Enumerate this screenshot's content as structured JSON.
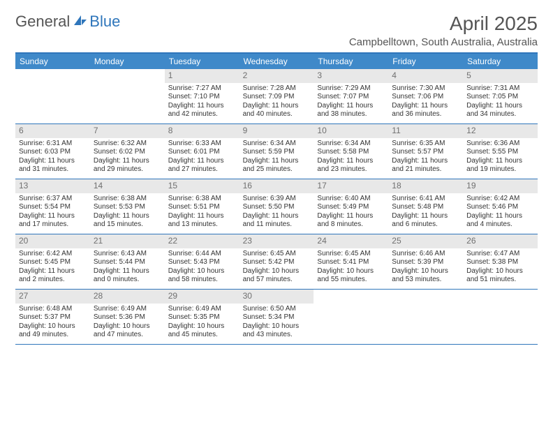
{
  "brand": {
    "part1": "General",
    "part2": "Blue"
  },
  "title": "April 2025",
  "location": "Campbelltown, South Australia, Australia",
  "colors": {
    "accent": "#3f89c9",
    "rule": "#2f76bb",
    "daybar": "#e8e8e8",
    "text": "#333333",
    "muted": "#707070",
    "header_text": "#555555"
  },
  "dayNames": [
    "Sunday",
    "Monday",
    "Tuesday",
    "Wednesday",
    "Thursday",
    "Friday",
    "Saturday"
  ],
  "weeks": [
    [
      {
        "n": "",
        "sr": "",
        "ss": "",
        "dl": ""
      },
      {
        "n": "",
        "sr": "",
        "ss": "",
        "dl": ""
      },
      {
        "n": "1",
        "sr": "Sunrise: 7:27 AM",
        "ss": "Sunset: 7:10 PM",
        "dl": "Daylight: 11 hours and 42 minutes."
      },
      {
        "n": "2",
        "sr": "Sunrise: 7:28 AM",
        "ss": "Sunset: 7:09 PM",
        "dl": "Daylight: 11 hours and 40 minutes."
      },
      {
        "n": "3",
        "sr": "Sunrise: 7:29 AM",
        "ss": "Sunset: 7:07 PM",
        "dl": "Daylight: 11 hours and 38 minutes."
      },
      {
        "n": "4",
        "sr": "Sunrise: 7:30 AM",
        "ss": "Sunset: 7:06 PM",
        "dl": "Daylight: 11 hours and 36 minutes."
      },
      {
        "n": "5",
        "sr": "Sunrise: 7:31 AM",
        "ss": "Sunset: 7:05 PM",
        "dl": "Daylight: 11 hours and 34 minutes."
      }
    ],
    [
      {
        "n": "6",
        "sr": "Sunrise: 6:31 AM",
        "ss": "Sunset: 6:03 PM",
        "dl": "Daylight: 11 hours and 31 minutes."
      },
      {
        "n": "7",
        "sr": "Sunrise: 6:32 AM",
        "ss": "Sunset: 6:02 PM",
        "dl": "Daylight: 11 hours and 29 minutes."
      },
      {
        "n": "8",
        "sr": "Sunrise: 6:33 AM",
        "ss": "Sunset: 6:01 PM",
        "dl": "Daylight: 11 hours and 27 minutes."
      },
      {
        "n": "9",
        "sr": "Sunrise: 6:34 AM",
        "ss": "Sunset: 5:59 PM",
        "dl": "Daylight: 11 hours and 25 minutes."
      },
      {
        "n": "10",
        "sr": "Sunrise: 6:34 AM",
        "ss": "Sunset: 5:58 PM",
        "dl": "Daylight: 11 hours and 23 minutes."
      },
      {
        "n": "11",
        "sr": "Sunrise: 6:35 AM",
        "ss": "Sunset: 5:57 PM",
        "dl": "Daylight: 11 hours and 21 minutes."
      },
      {
        "n": "12",
        "sr": "Sunrise: 6:36 AM",
        "ss": "Sunset: 5:55 PM",
        "dl": "Daylight: 11 hours and 19 minutes."
      }
    ],
    [
      {
        "n": "13",
        "sr": "Sunrise: 6:37 AM",
        "ss": "Sunset: 5:54 PM",
        "dl": "Daylight: 11 hours and 17 minutes."
      },
      {
        "n": "14",
        "sr": "Sunrise: 6:38 AM",
        "ss": "Sunset: 5:53 PM",
        "dl": "Daylight: 11 hours and 15 minutes."
      },
      {
        "n": "15",
        "sr": "Sunrise: 6:38 AM",
        "ss": "Sunset: 5:51 PM",
        "dl": "Daylight: 11 hours and 13 minutes."
      },
      {
        "n": "16",
        "sr": "Sunrise: 6:39 AM",
        "ss": "Sunset: 5:50 PM",
        "dl": "Daylight: 11 hours and 11 minutes."
      },
      {
        "n": "17",
        "sr": "Sunrise: 6:40 AM",
        "ss": "Sunset: 5:49 PM",
        "dl": "Daylight: 11 hours and 8 minutes."
      },
      {
        "n": "18",
        "sr": "Sunrise: 6:41 AM",
        "ss": "Sunset: 5:48 PM",
        "dl": "Daylight: 11 hours and 6 minutes."
      },
      {
        "n": "19",
        "sr": "Sunrise: 6:42 AM",
        "ss": "Sunset: 5:46 PM",
        "dl": "Daylight: 11 hours and 4 minutes."
      }
    ],
    [
      {
        "n": "20",
        "sr": "Sunrise: 6:42 AM",
        "ss": "Sunset: 5:45 PM",
        "dl": "Daylight: 11 hours and 2 minutes."
      },
      {
        "n": "21",
        "sr": "Sunrise: 6:43 AM",
        "ss": "Sunset: 5:44 PM",
        "dl": "Daylight: 11 hours and 0 minutes."
      },
      {
        "n": "22",
        "sr": "Sunrise: 6:44 AM",
        "ss": "Sunset: 5:43 PM",
        "dl": "Daylight: 10 hours and 58 minutes."
      },
      {
        "n": "23",
        "sr": "Sunrise: 6:45 AM",
        "ss": "Sunset: 5:42 PM",
        "dl": "Daylight: 10 hours and 57 minutes."
      },
      {
        "n": "24",
        "sr": "Sunrise: 6:45 AM",
        "ss": "Sunset: 5:41 PM",
        "dl": "Daylight: 10 hours and 55 minutes."
      },
      {
        "n": "25",
        "sr": "Sunrise: 6:46 AM",
        "ss": "Sunset: 5:39 PM",
        "dl": "Daylight: 10 hours and 53 minutes."
      },
      {
        "n": "26",
        "sr": "Sunrise: 6:47 AM",
        "ss": "Sunset: 5:38 PM",
        "dl": "Daylight: 10 hours and 51 minutes."
      }
    ],
    [
      {
        "n": "27",
        "sr": "Sunrise: 6:48 AM",
        "ss": "Sunset: 5:37 PM",
        "dl": "Daylight: 10 hours and 49 minutes."
      },
      {
        "n": "28",
        "sr": "Sunrise: 6:49 AM",
        "ss": "Sunset: 5:36 PM",
        "dl": "Daylight: 10 hours and 47 minutes."
      },
      {
        "n": "29",
        "sr": "Sunrise: 6:49 AM",
        "ss": "Sunset: 5:35 PM",
        "dl": "Daylight: 10 hours and 45 minutes."
      },
      {
        "n": "30",
        "sr": "Sunrise: 6:50 AM",
        "ss": "Sunset: 5:34 PM",
        "dl": "Daylight: 10 hours and 43 minutes."
      },
      {
        "n": "",
        "sr": "",
        "ss": "",
        "dl": ""
      },
      {
        "n": "",
        "sr": "",
        "ss": "",
        "dl": ""
      },
      {
        "n": "",
        "sr": "",
        "ss": "",
        "dl": ""
      }
    ]
  ]
}
